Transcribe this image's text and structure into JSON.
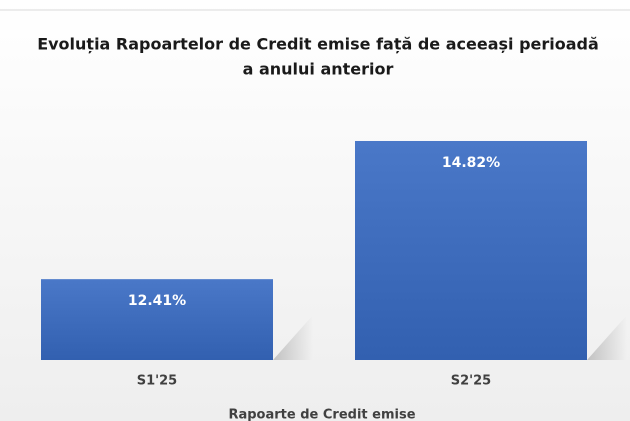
{
  "chart_data": {
    "type": "bar",
    "title": [
      "Evoluția Rapoartelor de Credit emise față de aceeași perioadă",
      "a anului anterior"
    ],
    "categories": [
      "S1'25",
      "S2'25"
    ],
    "values": [
      12.41,
      14.82
    ],
    "value_labels": [
      "12.41%",
      "14.82%"
    ],
    "color": "#4472c4",
    "xlabel": "Rapoarte de Credit emise",
    "ylim": [
      11,
      15.5
    ]
  }
}
